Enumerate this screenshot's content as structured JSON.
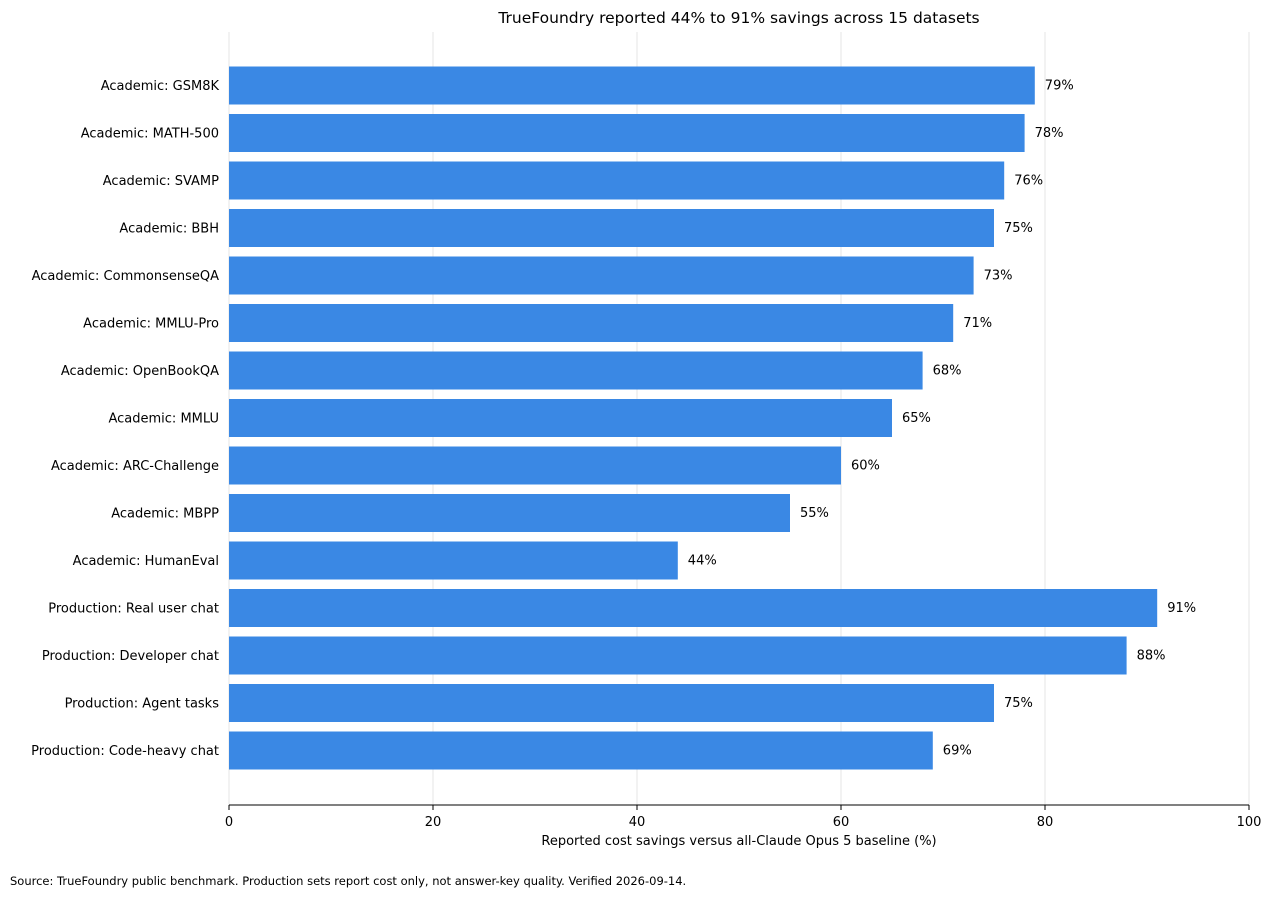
{
  "chart_data": {
    "type": "bar",
    "orientation": "horizontal",
    "title": "TrueFoundry reported 44% to 91% savings across 15 datasets",
    "xlabel": "Reported cost savings versus all-Claude Opus 5 baseline (%)",
    "ylabel": "",
    "xlim": [
      0,
      100
    ],
    "xticks": [
      0,
      20,
      40,
      60,
      80,
      100
    ],
    "grid": "vertical",
    "bar_color": "#3a88e4",
    "categories": [
      "Academic: GSM8K",
      "Academic: MATH-500",
      "Academic: SVAMP",
      "Academic: BBH",
      "Academic: CommonsenseQA",
      "Academic: MMLU-Pro",
      "Academic: OpenBookQA",
      "Academic: MMLU",
      "Academic: ARC-Challenge",
      "Academic: MBPP",
      "Academic: HumanEval",
      "Production: Real user chat",
      "Production: Developer chat",
      "Production: Agent tasks",
      "Production: Code-heavy chat"
    ],
    "values": [
      79,
      78,
      76,
      75,
      73,
      71,
      68,
      65,
      60,
      55,
      44,
      91,
      88,
      75,
      69
    ],
    "data_labels": [
      "79%",
      "78%",
      "76%",
      "75%",
      "73%",
      "71%",
      "68%",
      "65%",
      "60%",
      "55%",
      "44%",
      "91%",
      "88%",
      "75%",
      "69%"
    ]
  },
  "footer": {
    "source": "Source: TrueFoundry public benchmark. Production sets report cost only, not answer-key quality. Verified 2026-09-14."
  }
}
